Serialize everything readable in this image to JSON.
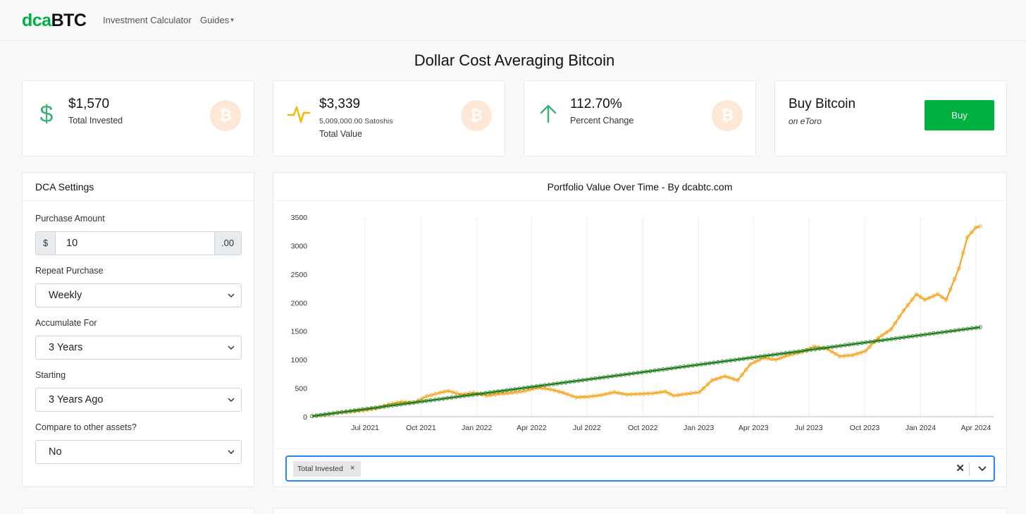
{
  "nav": {
    "logo_part1": "dca",
    "logo_part2": "BTC",
    "calculator": "Investment Calculator",
    "guides": "Guides"
  },
  "page_title": "Dollar Cost Averaging Bitcoin",
  "stats": {
    "invested": {
      "value": "$1,570",
      "label": "Total Invested",
      "icon": "dollar-icon"
    },
    "total": {
      "value": "$3,339",
      "sub": "5,009,000.00 Satoshis",
      "label": "Total Value",
      "icon": "pulse-icon"
    },
    "change": {
      "value": "112.70%",
      "label": "Percent Change",
      "icon": "arrow-up-icon"
    },
    "buy": {
      "title": "Buy Bitcoin",
      "sub": "on eToro",
      "button": "Buy"
    },
    "badge_symbol": "₿"
  },
  "settings": {
    "title": "DCA Settings",
    "purchase_amount_label": "Purchase Amount",
    "currency_symbol": "$",
    "amount": "10",
    "decimals": ".00",
    "repeat_label": "Repeat Purchase",
    "repeat_value": "Weekly",
    "accumulate_label": "Accumulate For",
    "accumulate_value": "3 Years",
    "starting_label": "Starting",
    "starting_value": "3 Years Ago",
    "compare_label": "Compare to other assets?",
    "compare_value": "No"
  },
  "chart_title": "Portfolio Value Over Time - By dcabtc.com",
  "selector": {
    "tag": "Total Invested",
    "tag_remove": "×",
    "clear": "✕"
  },
  "colors": {
    "brand": "#00b140",
    "value_line": "#f5a623",
    "invested_line": "#1a7a1a",
    "focus": "#2684ff"
  },
  "chart_data": {
    "type": "line",
    "x_ticks": [
      "Jul 2021",
      "Oct 2021",
      "Jan 2022",
      "Apr 2022",
      "Jul 2022",
      "Oct 2022",
      "Jan 2023",
      "Apr 2023",
      "Jul 2023",
      "Oct 2023",
      "Jan 2024",
      "Apr 2024"
    ],
    "y_ticks": [
      0,
      500,
      1000,
      1500,
      2000,
      2500,
      3000,
      3500
    ],
    "ylim": [
      0,
      3500
    ],
    "grid": "vertical",
    "series": [
      {
        "key": "value",
        "color": "#f5a623",
        "points": [
          [
            "2021-04-05",
            10
          ],
          [
            "2021-04-26",
            35
          ],
          [
            "2021-05-17",
            70
          ],
          [
            "2021-06-07",
            90
          ],
          [
            "2021-06-28",
            110
          ],
          [
            "2021-07-19",
            145
          ],
          [
            "2021-08-09",
            215
          ],
          [
            "2021-08-30",
            260
          ],
          [
            "2021-09-20",
            250
          ],
          [
            "2021-10-11",
            360
          ],
          [
            "2021-11-01",
            420
          ],
          [
            "2021-11-15",
            450
          ],
          [
            "2021-12-06",
            390
          ],
          [
            "2021-12-27",
            420
          ],
          [
            "2022-01-17",
            370
          ],
          [
            "2022-02-07",
            400
          ],
          [
            "2022-02-28",
            420
          ],
          [
            "2022-03-21",
            450
          ],
          [
            "2022-04-11",
            510
          ],
          [
            "2022-05-02",
            480
          ],
          [
            "2022-05-23",
            420
          ],
          [
            "2022-06-13",
            340
          ],
          [
            "2022-07-04",
            350
          ],
          [
            "2022-07-25",
            380
          ],
          [
            "2022-08-15",
            430
          ],
          [
            "2022-09-05",
            390
          ],
          [
            "2022-09-26",
            400
          ],
          [
            "2022-10-17",
            410
          ],
          [
            "2022-11-07",
            440
          ],
          [
            "2022-11-21",
            370
          ],
          [
            "2022-12-12",
            400
          ],
          [
            "2023-01-02",
            430
          ],
          [
            "2023-01-23",
            640
          ],
          [
            "2023-02-13",
            710
          ],
          [
            "2023-03-06",
            640
          ],
          [
            "2023-03-27",
            920
          ],
          [
            "2023-04-17",
            1030
          ],
          [
            "2023-05-08",
            1000
          ],
          [
            "2023-05-29",
            1080
          ],
          [
            "2023-06-19",
            1130
          ],
          [
            "2023-07-10",
            1230
          ],
          [
            "2023-07-31",
            1190
          ],
          [
            "2023-08-21",
            1060
          ],
          [
            "2023-09-11",
            1080
          ],
          [
            "2023-10-02",
            1150
          ],
          [
            "2023-10-23",
            1380
          ],
          [
            "2023-11-13",
            1530
          ],
          [
            "2023-12-04",
            1860
          ],
          [
            "2023-12-25",
            2150
          ],
          [
            "2024-01-08",
            2050
          ],
          [
            "2024-01-29",
            2150
          ],
          [
            "2024-02-12",
            2050
          ],
          [
            "2024-03-04",
            2600
          ],
          [
            "2024-03-18",
            3150
          ],
          [
            "2024-04-01",
            3320
          ],
          [
            "2024-04-08",
            3339
          ]
        ]
      },
      {
        "key": "invested",
        "color": "#1a7a1a",
        "points": [
          [
            "2021-04-05",
            10
          ],
          [
            "2024-04-08",
            1570
          ]
        ]
      }
    ]
  }
}
